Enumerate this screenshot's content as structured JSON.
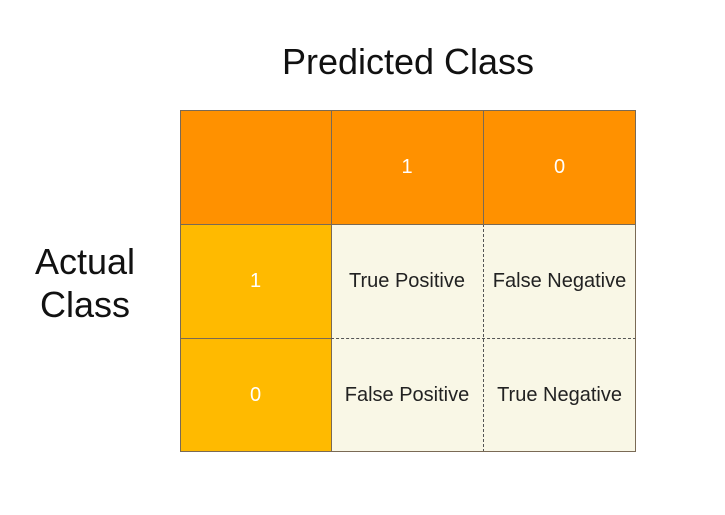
{
  "titles": {
    "predicted": "Predicted Class",
    "actual_line1": "Actual",
    "actual_line2": "Class"
  },
  "matrix": {
    "column_headers": [
      "1",
      "0"
    ],
    "row_headers": [
      "1",
      "0"
    ],
    "cells": [
      [
        "True Positive",
        "False Negative"
      ],
      [
        "False Positive",
        "True Negative"
      ]
    ]
  },
  "colors": {
    "header_orange": "#ff9100",
    "row_header_amber": "#ffba00",
    "cell_cream": "#f9f7e6"
  }
}
